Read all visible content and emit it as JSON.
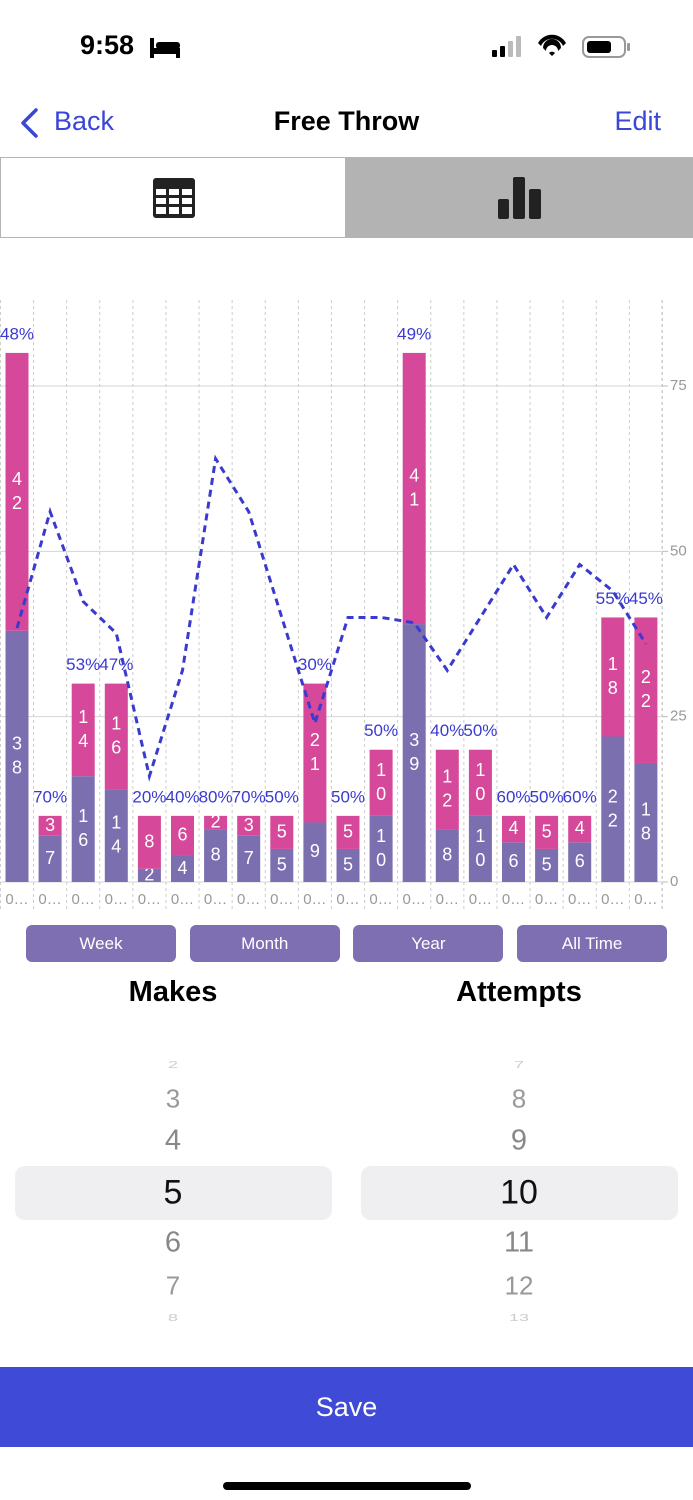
{
  "status_bar": {
    "time": "9:58"
  },
  "nav": {
    "back": "Back",
    "title": "Free Throw",
    "edit": "Edit"
  },
  "chart_data": {
    "type": "bar",
    "stacked": true,
    "categories": [
      "0…",
      "0…",
      "0…",
      "0…",
      "0…",
      "0…",
      "0…",
      "0…",
      "0…",
      "0…",
      "0…",
      "0…",
      "0…",
      "0…",
      "0…",
      "0…",
      "0…",
      "0…",
      "0…",
      "0…"
    ],
    "series": [
      {
        "color": "#7b6fb0",
        "values": [
          38,
          7,
          16,
          14,
          2,
          4,
          8,
          7,
          5,
          9,
          5,
          10,
          39,
          8,
          10,
          6,
          5,
          6,
          22,
          18
        ]
      },
      {
        "color": "#d5489a",
        "values": [
          42,
          3,
          14,
          16,
          8,
          6,
          2,
          3,
          5,
          21,
          5,
          10,
          41,
          12,
          10,
          4,
          5,
          4,
          18,
          22
        ]
      },
      {
        "type": "line",
        "axis": "y2",
        "color": "#3a3ad0",
        "dashed": true,
        "values": [
          48,
          70,
          53,
          47,
          20,
          40,
          80,
          70,
          50,
          30,
          50,
          50,
          49,
          40,
          50,
          60,
          50,
          60,
          55,
          45
        ],
        "value_labels": [
          "48%",
          "70%",
          "53%",
          "47%",
          "20%",
          "40%",
          "80%",
          "70%",
          "50%",
          "30%",
          "50%",
          "50%",
          "49%",
          "40%",
          "50%",
          "60%",
          "50%",
          "60%",
          "55%",
          "45%"
        ]
      }
    ],
    "ylim": [
      0,
      88
    ],
    "yticks": [
      0,
      25,
      50,
      75
    ],
    "y2lim": [
      0,
      110
    ],
    "grid": true
  },
  "range_buttons": [
    "Week",
    "Month",
    "Year",
    "All Time"
  ],
  "pickers": [
    {
      "label": "Makes",
      "items": [
        "2",
        "3",
        "4",
        "5",
        "6",
        "7",
        "8"
      ],
      "selected": 3
    },
    {
      "label": "Attempts",
      "items": [
        "7",
        "8",
        "9",
        "10",
        "11",
        "12",
        "13"
      ],
      "selected": 3
    }
  ],
  "save": "Save"
}
